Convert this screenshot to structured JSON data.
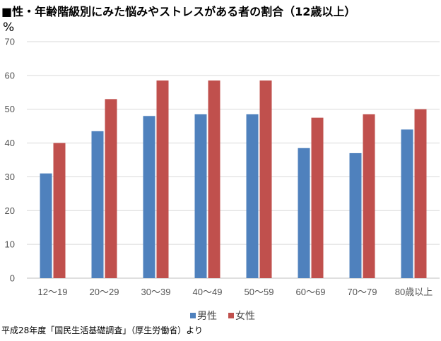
{
  "title": "■性・年齢階級別にみた悩みやストレスがある者の割合（12歳以上）",
  "unit_label": "%",
  "source": "平成28年度「国民生活基礎調査」（厚生労働省）より",
  "colors": {
    "male": "#4f81bd",
    "female": "#c0504d",
    "grid": "#d9d9d9",
    "axis": "#bfbfbf"
  },
  "chart_data": {
    "type": "bar",
    "categories": [
      "12〜19",
      "20〜29",
      "30〜39",
      "40〜49",
      "50〜59",
      "60〜69",
      "70〜79",
      "80歳以上"
    ],
    "series": [
      {
        "name": "男性",
        "values": [
          31.0,
          43.5,
          48.0,
          48.5,
          48.5,
          38.5,
          37.0,
          44.0
        ]
      },
      {
        "name": "女性",
        "values": [
          40.0,
          53.0,
          58.5,
          58.5,
          58.5,
          47.5,
          48.5,
          50.0
        ]
      }
    ],
    "ylim": [
      0,
      70
    ],
    "yticks": [
      0,
      10,
      20,
      30,
      40,
      50,
      60,
      70
    ],
    "grid": true,
    "legend": "bottom"
  }
}
